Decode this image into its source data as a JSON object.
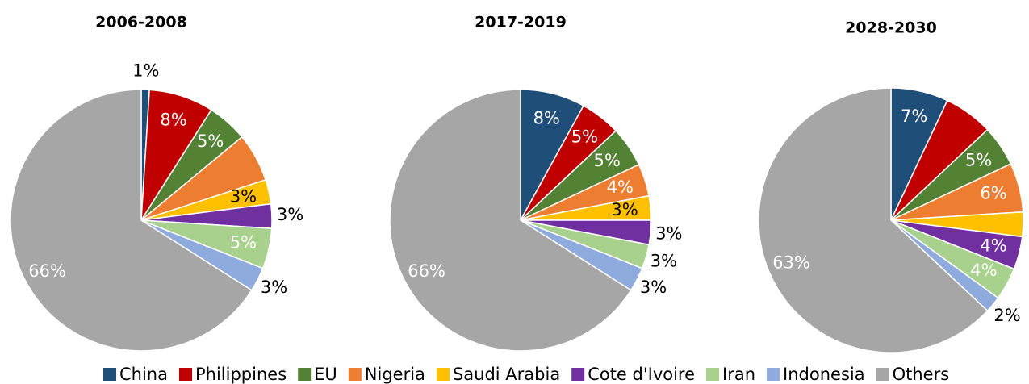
{
  "chart_data": [
    {
      "type": "pie",
      "title": "2006-2008",
      "categories": [
        "China",
        "Philippines",
        "EU",
        "Nigeria",
        "Saudi Arabia",
        "Cote d'Ivoire",
        "Iran",
        "Indonesia",
        "Others"
      ],
      "colors": [
        "#1f4e79",
        "#c00000",
        "#548235",
        "#ed7d31",
        "#ffc000",
        "#7030a0",
        "#a9d18e",
        "#8faadc",
        "#a6a6a6"
      ],
      "values": [
        1,
        8,
        5,
        6,
        3,
        3,
        5,
        3,
        66
      ],
      "value_labels": [
        "1%",
        "8%",
        "5%",
        null,
        "3%",
        "3%",
        "5%",
        "3%",
        "66%"
      ]
    },
    {
      "type": "pie",
      "title": "2017-2019",
      "categories": [
        "China",
        "Philippines",
        "EU",
        "Nigeria",
        "Saudi Arabia",
        "Cote d'Ivoire",
        "Iran",
        "Indonesia",
        "Others"
      ],
      "colors": [
        "#1f4e79",
        "#c00000",
        "#548235",
        "#ed7d31",
        "#ffc000",
        "#7030a0",
        "#a9d18e",
        "#8faadc",
        "#a6a6a6"
      ],
      "values": [
        8,
        5,
        5,
        4,
        3,
        3,
        3,
        3,
        66
      ],
      "value_labels": [
        "8%",
        "5%",
        "5%",
        "4%",
        "3%",
        "3%",
        "3%",
        "3%",
        "66%"
      ]
    },
    {
      "type": "pie",
      "title": "2028-2030",
      "categories": [
        "China",
        "Philippines",
        "EU",
        "Nigeria",
        "Saudi Arabia",
        "Cote d'Ivoire",
        "Iran",
        "Indonesia",
        "Others"
      ],
      "colors": [
        "#1f4e79",
        "#c00000",
        "#548235",
        "#ed7d31",
        "#ffc000",
        "#7030a0",
        "#a9d18e",
        "#8faadc",
        "#a6a6a6"
      ],
      "values": [
        7,
        6,
        5,
        6,
        3,
        4,
        4,
        2,
        63
      ],
      "value_labels": [
        "7%",
        null,
        "5%",
        "6%",
        "3%",
        "4%",
        "4%",
        "2%",
        "63%"
      ]
    }
  ]
}
